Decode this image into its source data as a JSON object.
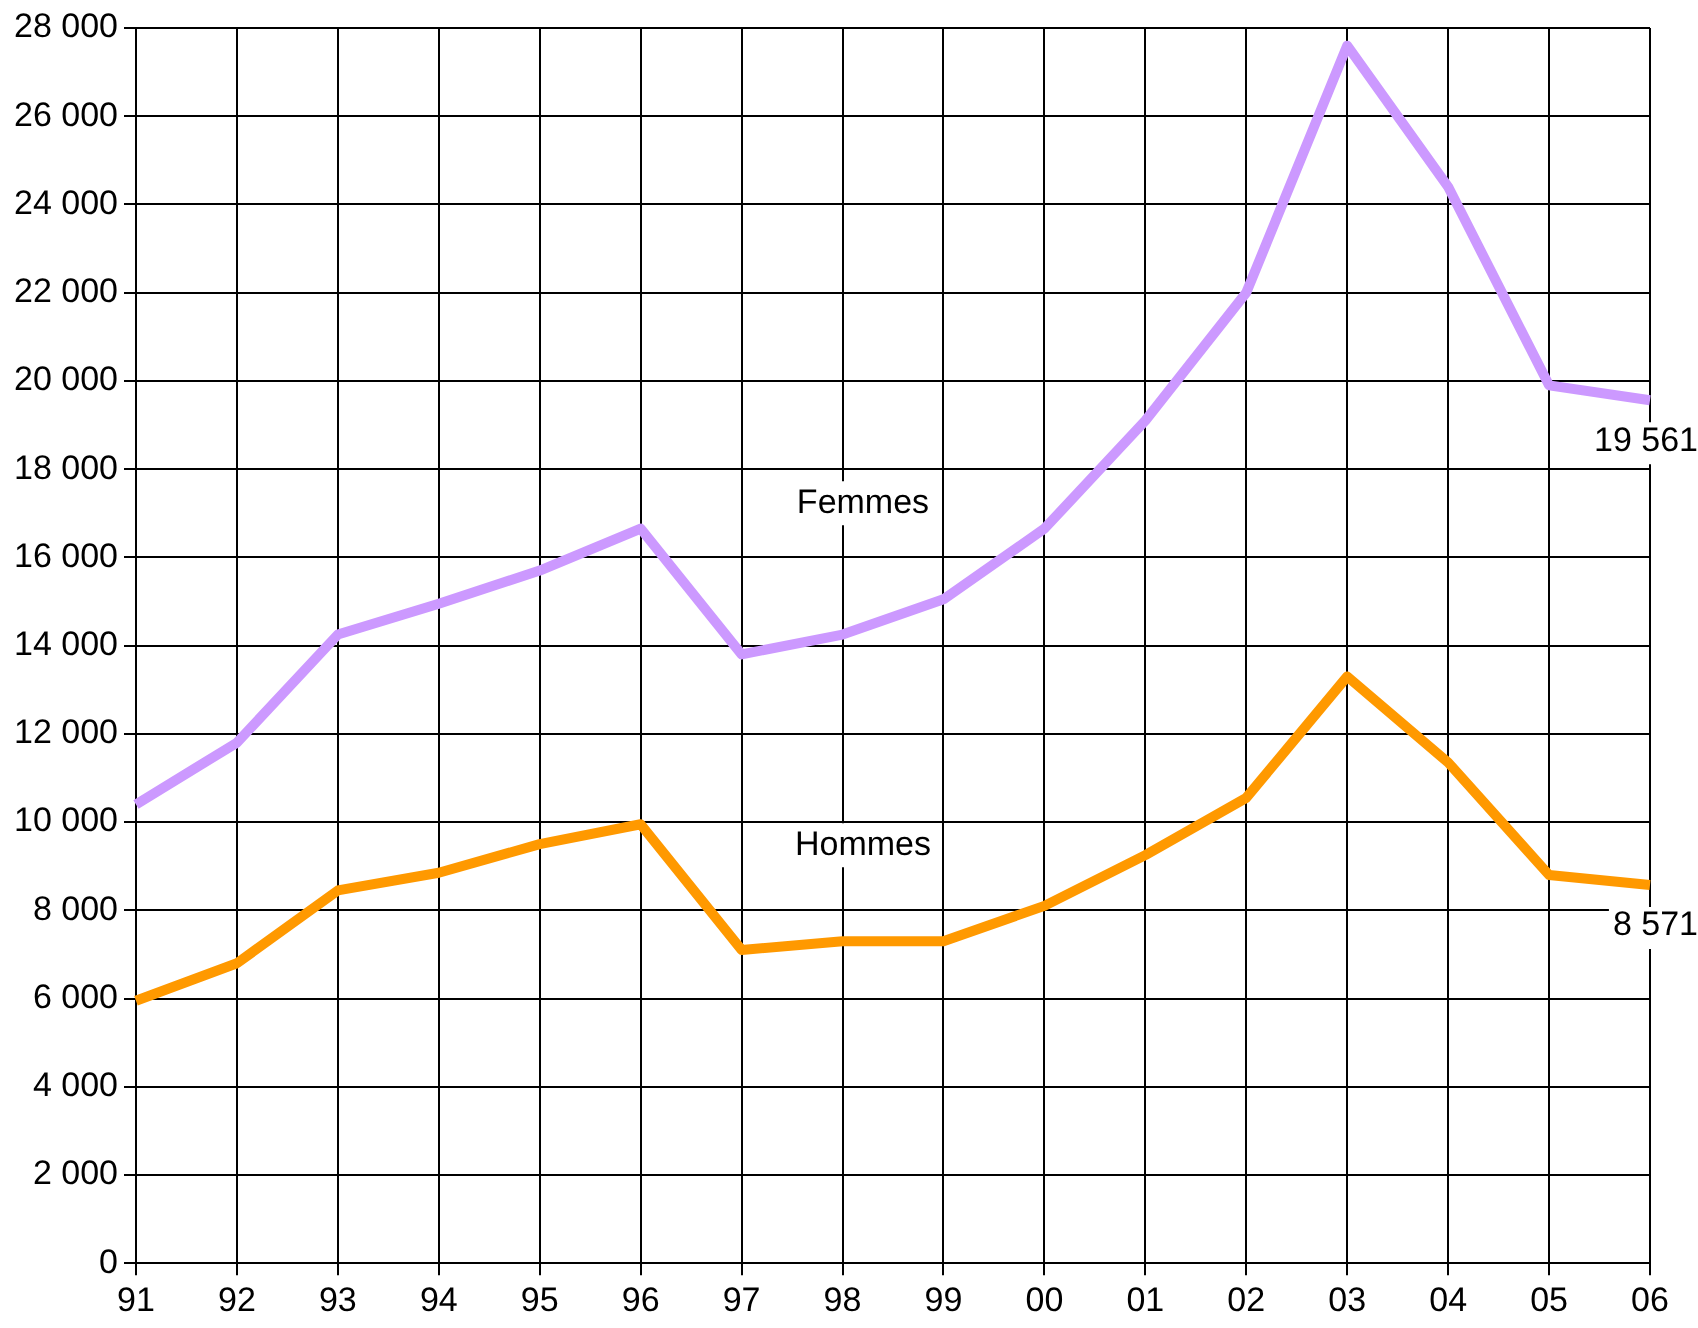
{
  "chart_data": {
    "type": "line",
    "categories": [
      "91",
      "92",
      "93",
      "94",
      "95",
      "96",
      "97",
      "98",
      "99",
      "00",
      "01",
      "02",
      "03",
      "04",
      "05",
      "06"
    ],
    "series": [
      {
        "name": "Femmes",
        "color": "#cc99ff",
        "values": [
          10400,
          11800,
          14250,
          14950,
          15700,
          16650,
          13800,
          14250,
          15050,
          16650,
          19100,
          22000,
          27600,
          24400,
          19900,
          19561
        ],
        "value_labels": [
          null,
          null,
          null,
          null,
          null,
          null,
          null,
          null,
          null,
          null,
          null,
          null,
          null,
          null,
          null,
          "19 561"
        ]
      },
      {
        "name": "Hommes",
        "color": "#ff9900",
        "values": [
          5950,
          6800,
          8450,
          8850,
          9500,
          9950,
          7100,
          7300,
          7300,
          8100,
          9250,
          10550,
          13300,
          11350,
          8800,
          8571
        ],
        "value_labels": [
          null,
          null,
          null,
          null,
          null,
          null,
          null,
          null,
          null,
          null,
          null,
          null,
          null,
          null,
          null,
          "8 571"
        ]
      }
    ],
    "ylim": [
      0,
      28000
    ],
    "yticks": [
      {
        "value": 0,
        "label": "0"
      },
      {
        "value": 2000,
        "label": "2 000"
      },
      {
        "value": 4000,
        "label": "4 000"
      },
      {
        "value": 6000,
        "label": "6 000"
      },
      {
        "value": 8000,
        "label": "8 000"
      },
      {
        "value": 10000,
        "label": "10 000"
      },
      {
        "value": 12000,
        "label": "12 000"
      },
      {
        "value": 14000,
        "label": "14 000"
      },
      {
        "value": 16000,
        "label": "16 000"
      },
      {
        "value": 18000,
        "label": "18 000"
      },
      {
        "value": 20000,
        "label": "20 000"
      },
      {
        "value": 22000,
        "label": "22 000"
      },
      {
        "value": 24000,
        "label": "24 000"
      },
      {
        "value": 26000,
        "label": "26 000"
      },
      {
        "value": 28000,
        "label": "28 000"
      }
    ],
    "grid": true,
    "legend": false,
    "marker": "none",
    "line_style": "solid"
  }
}
